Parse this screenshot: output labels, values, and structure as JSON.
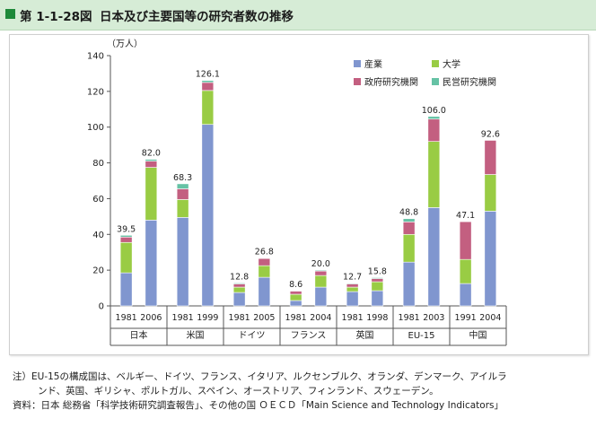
{
  "header": {
    "figure_number": "第 1-1-28図",
    "title": "日本及び主要国等の研究者数の推移"
  },
  "colors": {
    "industry": "#8096cf",
    "university": "#99cc44",
    "government": "#c35f80",
    "private": "#66c2a5"
  },
  "chart_data": {
    "type": "bar",
    "stacked": true,
    "unit_label": "（万人）",
    "ylim": [
      0,
      140
    ],
    "yticks": [
      0,
      20,
      40,
      60,
      80,
      100,
      120,
      140
    ],
    "legend": [
      {
        "key": "industry",
        "label": "産業"
      },
      {
        "key": "university",
        "label": "大学"
      },
      {
        "key": "government",
        "label": "政府研究機関"
      },
      {
        "key": "private",
        "label": "民営研究機関"
      }
    ],
    "groups": [
      {
        "country": "日本",
        "bars": [
          {
            "year": "1981",
            "total": "39.5",
            "values": [
              18.5,
              17.0,
              3.0,
              1.0
            ]
          },
          {
            "year": "2006",
            "total": "82.0",
            "values": [
              48.0,
              29.5,
              3.5,
              1.0
            ]
          }
        ]
      },
      {
        "country": "米国",
        "bars": [
          {
            "year": "1981",
            "total": "68.3",
            "values": [
              49.5,
              10.0,
              6.0,
              2.8
            ]
          },
          {
            "year": "1999",
            "total": "126.1",
            "values": [
              101.5,
              19.0,
              4.5,
              1.1
            ]
          }
        ]
      },
      {
        "country": "ドイツ",
        "bars": [
          {
            "year": "1981",
            "total": "12.8",
            "values": [
              7.5,
              3.0,
              1.8,
              0.5
            ]
          },
          {
            "year": "2005",
            "total": "26.8",
            "values": [
              16.0,
              6.5,
              4.0,
              0.3
            ]
          }
        ]
      },
      {
        "country": "フランス",
        "bars": [
          {
            "year": "1981",
            "total": "8.6",
            "values": [
              3.0,
              3.5,
              1.8,
              0.3
            ]
          },
          {
            "year": "2004",
            "total": "20.0",
            "values": [
              10.5,
              6.5,
              2.5,
              0.5
            ]
          }
        ]
      },
      {
        "country": "英国",
        "bars": [
          {
            "year": "1981",
            "total": "12.7",
            "values": [
              8.0,
              2.5,
              1.8,
              0.4
            ]
          },
          {
            "year": "1998",
            "total": "15.8",
            "values": [
              8.5,
              5.0,
              1.8,
              0.5
            ]
          }
        ]
      },
      {
        "country": "EU-15",
        "bars": [
          {
            "year": "1981",
            "total": "48.8",
            "values": [
              24.5,
              15.5,
              7.0,
              1.8
            ]
          },
          {
            "year": "2003",
            "total": "106.0",
            "values": [
              55.0,
              37.0,
              12.5,
              1.5
            ]
          }
        ]
      },
      {
        "country": "中国",
        "bars": [
          {
            "year": "1991",
            "total": "47.1",
            "values": [
              12.5,
              13.5,
              21.1,
              0
            ]
          },
          {
            "year": "2004",
            "total": "92.6",
            "values": [
              53.0,
              20.5,
              19.1,
              0
            ]
          }
        ]
      }
    ]
  },
  "notes": {
    "line1": "注）EU-15の構成国は、ベルギー、ドイツ、フランス、イタリア、ルクセンブルク、オランダ、デンマーク、アイルラ",
    "line2": "ンド、英国、ギリシャ、ポルトガル、スペイン、オーストリア、フィンランド、スウェーデン。",
    "line3": "資料：日本 総務省「科学技術研究調査報告」、その他の国 ＯＥＣＤ「Main Science and Technology Indicators」"
  }
}
